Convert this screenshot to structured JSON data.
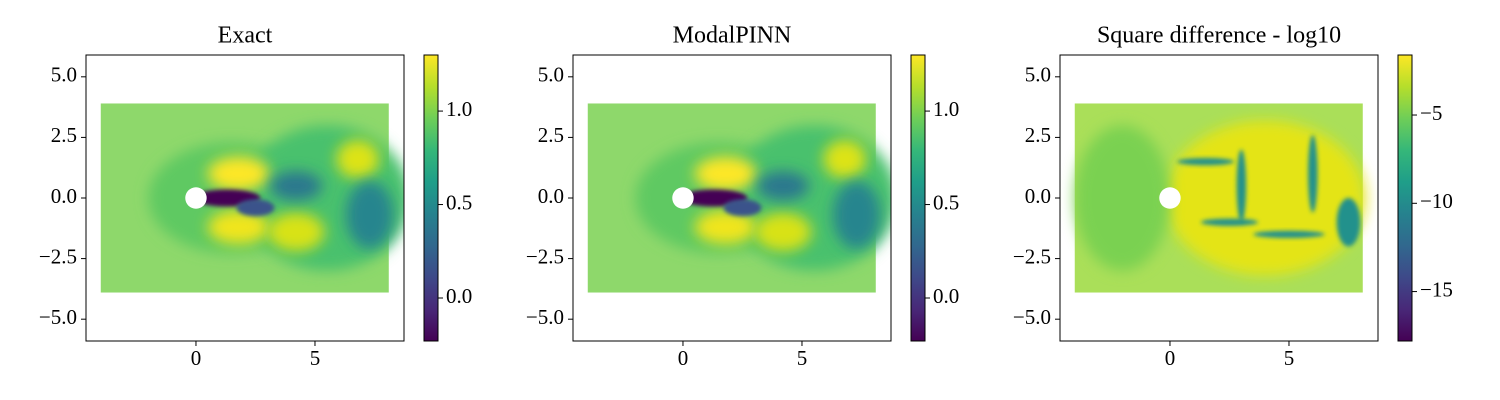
{
  "chart_data": [
    {
      "type": "scatter",
      "title": "Exact",
      "colormap": "viridis",
      "xlim": [
        -4.62,
        8.74
      ],
      "ylim": [
        -5.9,
        5.9
      ],
      "xticks": [
        0,
        5
      ],
      "yticks": [
        {
          "value": -5.0,
          "label": "−5.0"
        },
        {
          "value": -2.5,
          "label": "−2.5"
        },
        {
          "value": 0.0,
          "label": "0.0"
        },
        2.5,
        {
          "value": 5.0,
          "label": "5.0"
        }
      ],
      "clim": [
        -0.23,
        1.3
      ],
      "cticks": [
        {
          "value": 0.0,
          "label": "0.0"
        },
        0.5,
        {
          "value": 1.0,
          "label": "1.0"
        }
      ]
    },
    {
      "type": "scatter",
      "title": "ModalPINN",
      "colormap": "viridis",
      "xlim": [
        -4.62,
        8.74
      ],
      "ylim": [
        -5.9,
        5.9
      ],
      "xticks": [
        0,
        5
      ],
      "yticks": [
        {
          "value": -5.0,
          "label": "−5.0"
        },
        {
          "value": -2.5,
          "label": "−2.5"
        },
        {
          "value": 0.0,
          "label": "0.0"
        },
        2.5,
        {
          "value": 5.0,
          "label": "5.0"
        }
      ],
      "clim": [
        -0.23,
        1.3
      ],
      "cticks": [
        {
          "value": 0.0,
          "label": "0.0"
        },
        0.5,
        {
          "value": 1.0,
          "label": "1.0"
        }
      ]
    },
    {
      "type": "scatter",
      "title": "Square difference - log10",
      "colormap": "viridis",
      "xlim": [
        -4.62,
        8.74
      ],
      "ylim": [
        -5.9,
        5.9
      ],
      "xticks": [
        0,
        5
      ],
      "yticks": [
        {
          "value": -5.0,
          "label": "−5.0"
        },
        {
          "value": -2.5,
          "label": "−2.5"
        },
        {
          "value": 0.0,
          "label": "0.0"
        },
        2.5,
        {
          "value": 5.0,
          "label": "5.0"
        }
      ],
      "clim": [
        -17.8,
        -1.6
      ],
      "cticks": [
        {
          "value": -15,
          "label": "−15"
        },
        {
          "value": -10,
          "label": "−10"
        },
        {
          "value": -5,
          "label": "−5"
        }
      ]
    }
  ]
}
